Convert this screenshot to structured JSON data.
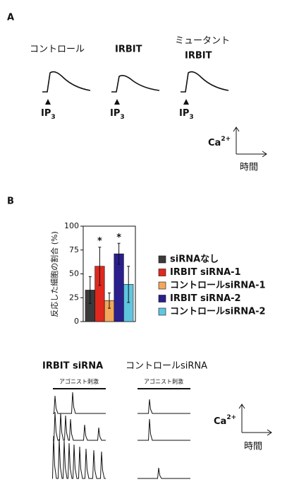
{
  "panel_a": {
    "label": "A",
    "conditions": [
      "コントロール",
      "IRBIT",
      "ミュータント",
      "IRBIT"
    ],
    "stimulus": "IP",
    "stimulus_sub": "3",
    "axis_y": "Ca",
    "axis_y_sup": "2+",
    "axis_x": "時間"
  },
  "panel_b": {
    "label": "B",
    "chart_data": {
      "type": "bar",
      "ylabel": "反応した細胞の割合 (%)",
      "categories": [
        "siRNAなし",
        "IRBIT siRNA-1",
        "コントロールsiRNA-1",
        "IRBIT siRNA-2",
        "コントロールsiRNA-2"
      ],
      "values": [
        33,
        58,
        22,
        71,
        39
      ],
      "errors": [
        14,
        20,
        8,
        11,
        19
      ],
      "colors": [
        "#3a3a3a",
        "#e0281e",
        "#f3a85a",
        "#2a1f8c",
        "#5fc6e0"
      ],
      "ylim": [
        0,
        100
      ],
      "yticks": [
        0,
        25,
        50,
        75,
        100
      ],
      "annotations": [
        {
          "text": "*",
          "category": "IRBIT siRNA-1"
        },
        {
          "text": "*",
          "category": "IRBIT siRNA-2"
        }
      ]
    },
    "traces": {
      "groups": [
        "IRBIT siRNA",
        "コントロールsiRNA"
      ],
      "stimulus": "アゴニスト刺激",
      "axis_y": "Ca",
      "axis_y_sup": "2+",
      "axis_x": "時間"
    }
  }
}
